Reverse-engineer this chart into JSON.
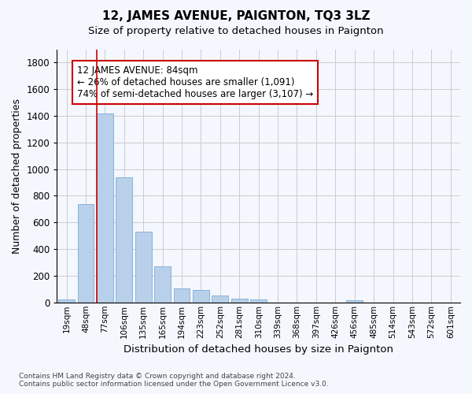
{
  "title": "12, JAMES AVENUE, PAIGNTON, TQ3 3LZ",
  "subtitle": "Size of property relative to detached houses in Paignton",
  "xlabel": "Distribution of detached houses by size in Paignton",
  "ylabel": "Number of detached properties",
  "footer_line1": "Contains HM Land Registry data © Crown copyright and database right 2024.",
  "footer_line2": "Contains public sector information licensed under the Open Government Licence v3.0.",
  "categories": [
    "19sqm",
    "48sqm",
    "77sqm",
    "106sqm",
    "135sqm",
    "165sqm",
    "194sqm",
    "223sqm",
    "252sqm",
    "281sqm",
    "310sqm",
    "339sqm",
    "368sqm",
    "397sqm",
    "426sqm",
    "456sqm",
    "485sqm",
    "514sqm",
    "543sqm",
    "572sqm",
    "601sqm"
  ],
  "values": [
    20,
    740,
    1420,
    940,
    530,
    270,
    105,
    95,
    50,
    28,
    20,
    0,
    0,
    0,
    0,
    15,
    0,
    0,
    0,
    0,
    0
  ],
  "bar_color": "#b8d0ea",
  "bar_edge_color": "#7aacd4",
  "grid_color": "#cccccc",
  "vline_bar_index": 2,
  "vline_color": "#cc0000",
  "annotation_line1": "12 JAMES AVENUE: 84sqm",
  "annotation_line2": "← 26% of detached houses are smaller (1,091)",
  "annotation_line3": "74% of semi-detached houses are larger (3,107) →",
  "annotation_box_facecolor": "#ffffff",
  "annotation_box_edgecolor": "#cc0000",
  "ylim": [
    0,
    1900
  ],
  "yticks": [
    0,
    200,
    400,
    600,
    800,
    1000,
    1200,
    1400,
    1600,
    1800
  ],
  "background_color": "#ffffff",
  "fig_background_color": "#f5f7ff"
}
